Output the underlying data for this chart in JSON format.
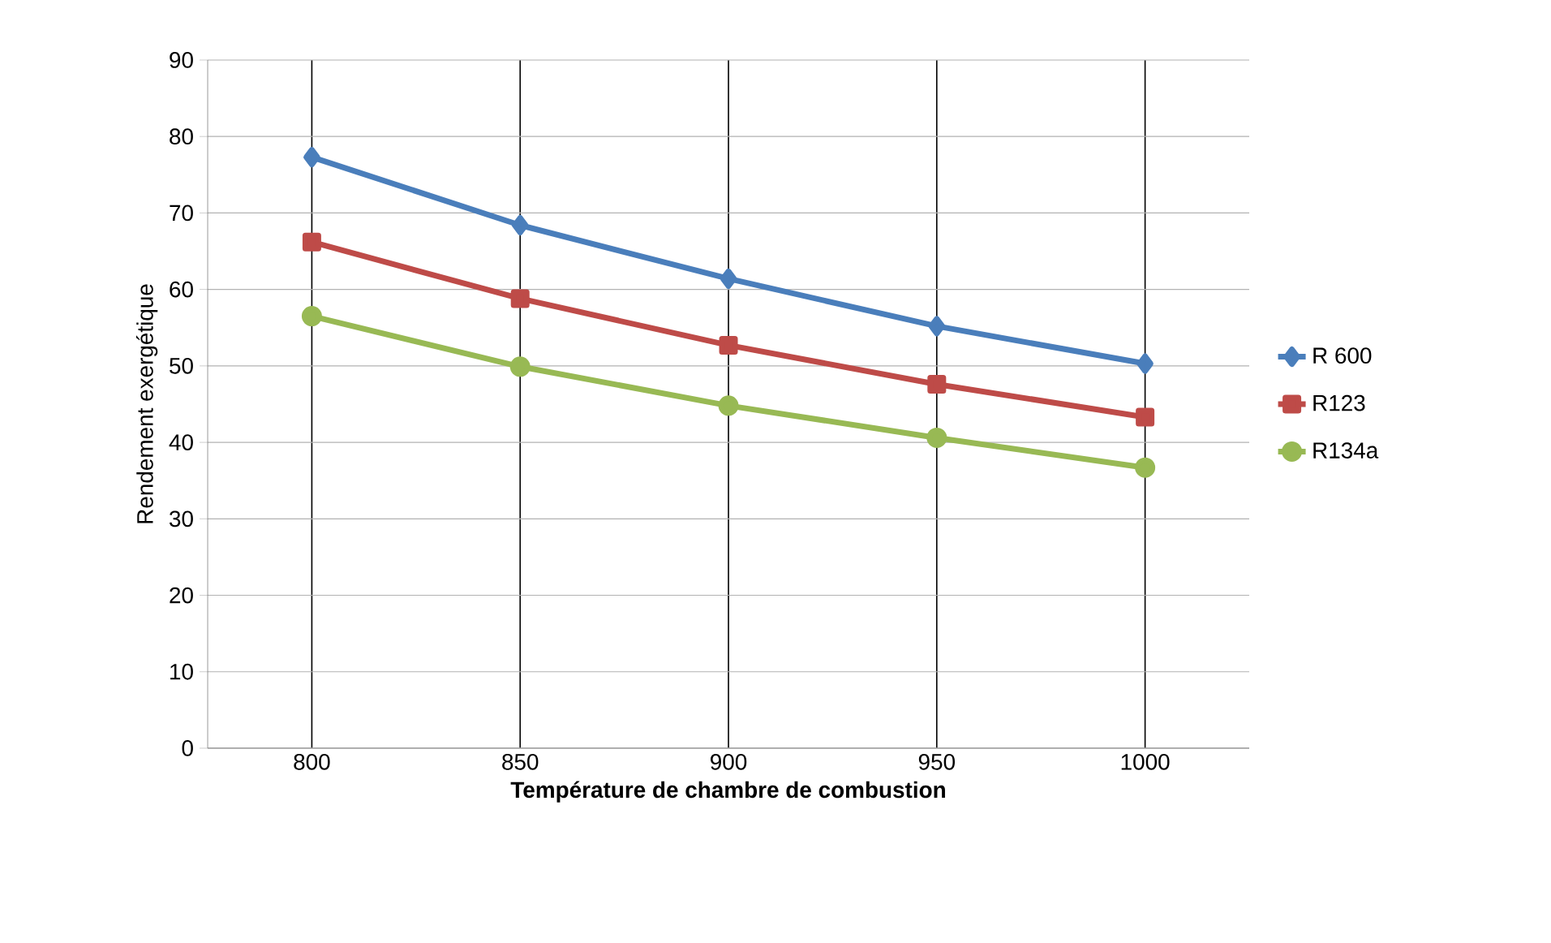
{
  "chart_data": {
    "type": "line",
    "xlabel": "Température de chambre de combustion",
    "ylabel": "Rendement exergétique",
    "categories": [
      "800",
      "850",
      "900",
      "950",
      "1000"
    ],
    "series": [
      {
        "name": "R 600",
        "color": "#4a7ebb",
        "marker": "diamond",
        "values": [
          77.3,
          68.4,
          61.4,
          55.2,
          50.3
        ]
      },
      {
        "name": "R123",
        "color": "#be4b48",
        "marker": "square",
        "values": [
          66.2,
          58.8,
          52.7,
          47.6,
          43.3
        ]
      },
      {
        "name": "R134a",
        "color": "#98b954",
        "marker": "circle",
        "values": [
          56.5,
          49.9,
          44.8,
          40.6,
          36.7
        ]
      }
    ],
    "ylim": [
      0,
      90
    ],
    "yticks": [
      0,
      10,
      20,
      30,
      40,
      50,
      60,
      70,
      80,
      90
    ],
    "grid": true,
    "legend": "right"
  }
}
